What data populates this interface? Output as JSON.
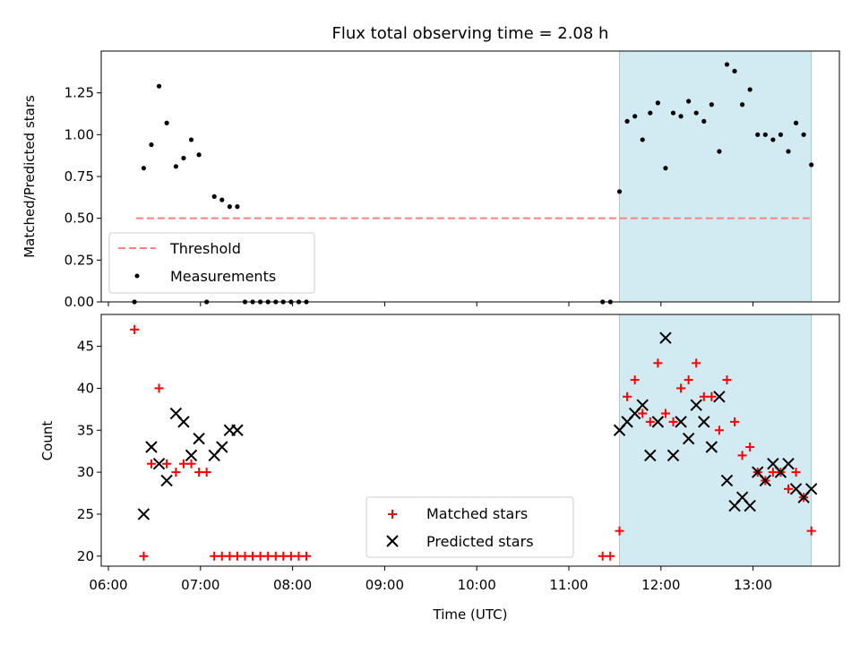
{
  "chart_data": {
    "type": "scatter",
    "title": "Flux total observing time = 2.08 h",
    "xlabel": "Time (UTC)",
    "xlim": [
      "06:00",
      "14:00"
    ],
    "x_ticks": [
      "06:00",
      "07:00",
      "08:00",
      "09:00",
      "10:00",
      "11:00",
      "12:00",
      "13:00"
    ],
    "shaded_span": [
      "11:33",
      "13:38"
    ],
    "shaded_color": "#add8e6",
    "panels": [
      {
        "id": "ratio",
        "ylabel": "Matched/Predicted stars",
        "ylim": [
          0,
          1.5
        ],
        "y_ticks": [
          0,
          0.25,
          0.5,
          0.75,
          1.0,
          1.25
        ],
        "y_tick_labels": [
          "0.00",
          "0.25",
          "0.50",
          "0.75",
          "1.00",
          "1.25"
        ],
        "legend_position": "lower-left",
        "threshold": {
          "name": "Threshold",
          "value": 0.5,
          "from": "06:18",
          "to": "13:38",
          "color": "#ff8080",
          "style": "dashed"
        },
        "series": [
          {
            "name": "Measurements",
            "marker": "dot",
            "color": "#000000",
            "points": [
              [
                "06:17",
                0.0
              ],
              [
                "06:23",
                0.8
              ],
              [
                "06:28",
                0.94
              ],
              [
                "06:33",
                1.29
              ],
              [
                "06:38",
                1.07
              ],
              [
                "06:44",
                0.81
              ],
              [
                "06:49",
                0.86
              ],
              [
                "06:54",
                0.97
              ],
              [
                "06:59",
                0.88
              ],
              [
                "07:04",
                0.0
              ],
              [
                "07:09",
                0.63
              ],
              [
                "07:14",
                0.61
              ],
              [
                "07:19",
                0.57
              ],
              [
                "07:24",
                0.57
              ],
              [
                "07:29",
                0.0
              ],
              [
                "07:34",
                0.0
              ],
              [
                "07:39",
                0.0
              ],
              [
                "07:44",
                0.0
              ],
              [
                "07:49",
                0.0
              ],
              [
                "07:54",
                0.0
              ],
              [
                "07:59",
                0.0
              ],
              [
                "08:04",
                0.0
              ],
              [
                "08:09",
                0.0
              ],
              [
                "11:22",
                0.0
              ],
              [
                "11:27",
                0.0
              ],
              [
                "11:33",
                0.66
              ],
              [
                "11:38",
                1.08
              ],
              [
                "11:43",
                1.11
              ],
              [
                "11:48",
                0.97
              ],
              [
                "11:53",
                1.13
              ],
              [
                "11:58",
                1.19
              ],
              [
                "12:03",
                0.8
              ],
              [
                "12:08",
                1.13
              ],
              [
                "12:13",
                1.11
              ],
              [
                "12:18",
                1.2
              ],
              [
                "12:23",
                1.13
              ],
              [
                "12:28",
                1.08
              ],
              [
                "12:33",
                1.18
              ],
              [
                "12:38",
                0.9
              ],
              [
                "12:43",
                1.42
              ],
              [
                "12:48",
                1.38
              ],
              [
                "12:53",
                1.18
              ],
              [
                "12:58",
                1.27
              ],
              [
                "13:03",
                1.0
              ],
              [
                "13:08",
                1.0
              ],
              [
                "13:13",
                0.97
              ],
              [
                "13:18",
                1.0
              ],
              [
                "13:23",
                0.9
              ],
              [
                "13:28",
                1.07
              ],
              [
                "13:33",
                1.0
              ],
              [
                "13:38",
                0.82
              ]
            ]
          }
        ]
      },
      {
        "id": "count",
        "ylabel": "Count",
        "ylim": [
          18.8,
          48.8
        ],
        "y_ticks": [
          20,
          25,
          30,
          35,
          40,
          45
        ],
        "y_tick_labels": [
          "20",
          "25",
          "30",
          "35",
          "40",
          "45"
        ],
        "legend_position": "lower-center",
        "series": [
          {
            "name": "Matched stars",
            "marker": "plus",
            "color": "#ff0000",
            "points": [
              [
                "06:17",
                47
              ],
              [
                "06:23",
                20
              ],
              [
                "06:28",
                31
              ],
              [
                "06:33",
                40
              ],
              [
                "06:38",
                31
              ],
              [
                "06:44",
                30
              ],
              [
                "06:49",
                31
              ],
              [
                "06:54",
                31
              ],
              [
                "06:59",
                30
              ],
              [
                "07:04",
                30
              ],
              [
                "07:09",
                20
              ],
              [
                "07:14",
                20
              ],
              [
                "07:19",
                20
              ],
              [
                "07:24",
                20
              ],
              [
                "07:29",
                20
              ],
              [
                "07:34",
                20
              ],
              [
                "07:39",
                20
              ],
              [
                "07:44",
                20
              ],
              [
                "07:49",
                20
              ],
              [
                "07:54",
                20
              ],
              [
                "07:59",
                20
              ],
              [
                "08:04",
                20
              ],
              [
                "08:09",
                20
              ],
              [
                "11:22",
                20
              ],
              [
                "11:27",
                20
              ],
              [
                "11:33",
                23
              ],
              [
                "11:38",
                39
              ],
              [
                "11:43",
                41
              ],
              [
                "11:48",
                37
              ],
              [
                "11:53",
                36
              ],
              [
                "11:58",
                43
              ],
              [
                "12:03",
                37
              ],
              [
                "12:08",
                36
              ],
              [
                "12:13",
                40
              ],
              [
                "12:18",
                41
              ],
              [
                "12:23",
                43
              ],
              [
                "12:28",
                39
              ],
              [
                "12:33",
                39
              ],
              [
                "12:38",
                35
              ],
              [
                "12:43",
                41
              ],
              [
                "12:48",
                36
              ],
              [
                "12:53",
                32
              ],
              [
                "12:58",
                33
              ],
              [
                "13:03",
                30
              ],
              [
                "13:08",
                29
              ],
              [
                "13:13",
                30
              ],
              [
                "13:18",
                30
              ],
              [
                "13:23",
                28
              ],
              [
                "13:28",
                30
              ],
              [
                "13:33",
                27
              ],
              [
                "13:38",
                23
              ]
            ]
          },
          {
            "name": "Predicted stars",
            "marker": "x",
            "color": "#000000",
            "points": [
              [
                "06:23",
                25
              ],
              [
                "06:28",
                33
              ],
              [
                "06:33",
                31
              ],
              [
                "06:38",
                29
              ],
              [
                "06:44",
                37
              ],
              [
                "06:49",
                36
              ],
              [
                "06:54",
                32
              ],
              [
                "06:59",
                34
              ],
              [
                "07:09",
                32
              ],
              [
                "07:14",
                33
              ],
              [
                "07:19",
                35
              ],
              [
                "07:24",
                35
              ],
              [
                "11:33",
                35
              ],
              [
                "11:38",
                36
              ],
              [
                "11:43",
                37
              ],
              [
                "11:48",
                38
              ],
              [
                "11:53",
                32
              ],
              [
                "11:58",
                36
              ],
              [
                "12:03",
                46
              ],
              [
                "12:08",
                32
              ],
              [
                "12:13",
                36
              ],
              [
                "12:18",
                34
              ],
              [
                "12:23",
                38
              ],
              [
                "12:28",
                36
              ],
              [
                "12:33",
                33
              ],
              [
                "12:38",
                39
              ],
              [
                "12:43",
                29
              ],
              [
                "12:48",
                26
              ],
              [
                "12:53",
                27
              ],
              [
                "12:58",
                26
              ],
              [
                "13:03",
                30
              ],
              [
                "13:08",
                29
              ],
              [
                "13:13",
                31
              ],
              [
                "13:18",
                30
              ],
              [
                "13:23",
                31
              ],
              [
                "13:28",
                28
              ],
              [
                "13:33",
                27
              ],
              [
                "13:38",
                28
              ]
            ]
          }
        ]
      }
    ]
  }
}
